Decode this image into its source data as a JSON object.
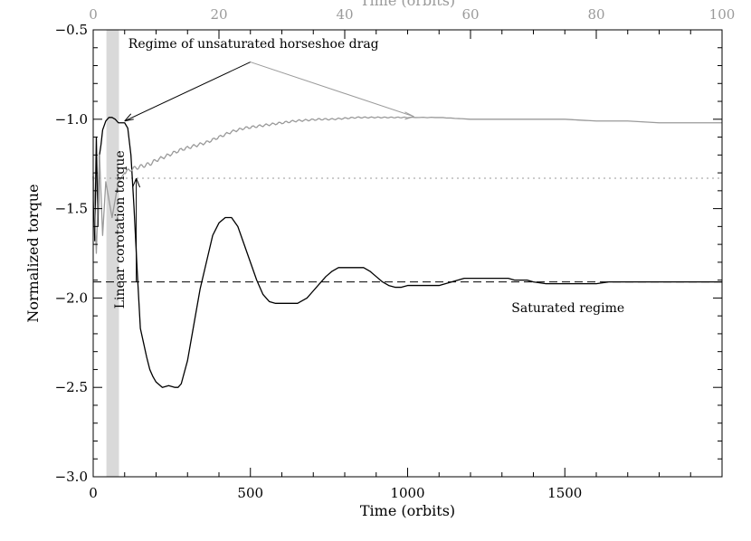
{
  "chart_data": {
    "type": "line",
    "title": "",
    "xlabel": "Time (orbits)",
    "ylabel": "Normalized torque",
    "top_xlabel": "Time (orbits)",
    "xlim": [
      0,
      2000
    ],
    "ylim": [
      -3.0,
      -0.5
    ],
    "top_xlim": [
      0,
      100
    ],
    "x_ticks": [
      0,
      500,
      1000,
      1500
    ],
    "x_tick_labels": [
      "0",
      "500",
      "1000",
      "1500"
    ],
    "top_x_ticks": [
      0,
      20,
      40,
      60,
      80,
      100
    ],
    "top_x_tick_labels": [
      "0",
      "20",
      "40",
      "60",
      "80",
      "100"
    ],
    "y_ticks": [
      -3.0,
      -2.5,
      -2.0,
      -1.5,
      -1.0,
      -0.5
    ],
    "y_tick_labels": [
      "−3.0",
      "−2.5",
      "−2.0",
      "−1.5",
      "−1.0",
      "−0.5"
    ],
    "grid": false,
    "shaded_band": {
      "x_range": [
        42,
        82
      ],
      "color": "#d9d9d9"
    },
    "reference_lines": [
      {
        "y": -1.91,
        "style": "dashed",
        "color": "#000000"
      },
      {
        "y": -1.33,
        "style": "dotted",
        "color": "#9a9a9a"
      }
    ],
    "series": [
      {
        "axis": "bottom",
        "color": "#000000",
        "x": [
          0,
          5,
          10,
          15,
          20,
          25,
          30,
          40,
          50,
          60,
          70,
          80,
          90,
          100,
          110,
          120,
          130,
          140,
          150,
          160,
          170,
          180,
          190,
          200,
          220,
          240,
          260,
          270,
          280,
          300,
          320,
          340,
          360,
          380,
          400,
          420,
          440,
          460,
          480,
          500,
          520,
          540,
          560,
          580,
          600,
          620,
          640,
          650,
          660,
          680,
          700,
          720,
          740,
          760,
          780,
          800,
          820,
          840,
          860,
          880,
          900,
          920,
          940,
          960,
          980,
          1000,
          1020,
          1040,
          1060,
          1080,
          1100,
          1120,
          1140,
          1160,
          1180,
          1200,
          1220,
          1240,
          1260,
          1280,
          1300,
          1320,
          1340,
          1360,
          1380,
          1400,
          1440,
          1480,
          1520,
          1560,
          1600,
          1640,
          1680,
          1720,
          1760,
          1800,
          1840,
          1880,
          1920,
          1960,
          2000
        ],
        "y": [
          -1.32,
          -1.68,
          -1.1,
          -1.6,
          -1.2,
          -1.14,
          -1.06,
          -1.01,
          -0.99,
          -0.99,
          -1.0,
          -1.02,
          -1.02,
          -1.02,
          -1.05,
          -1.2,
          -1.5,
          -1.85,
          -2.17,
          -2.25,
          -2.33,
          -2.4,
          -2.44,
          -2.47,
          -2.5,
          -2.49,
          -2.5,
          -2.5,
          -2.48,
          -2.35,
          -2.15,
          -1.95,
          -1.8,
          -1.65,
          -1.58,
          -1.55,
          -1.55,
          -1.6,
          -1.7,
          -1.8,
          -1.9,
          -1.98,
          -2.02,
          -2.03,
          -2.03,
          -2.03,
          -2.03,
          -2.03,
          -2.02,
          -2.0,
          -1.96,
          -1.92,
          -1.88,
          -1.85,
          -1.83,
          -1.83,
          -1.83,
          -1.83,
          -1.83,
          -1.85,
          -1.88,
          -1.91,
          -1.93,
          -1.94,
          -1.94,
          -1.93,
          -1.93,
          -1.93,
          -1.93,
          -1.93,
          -1.93,
          -1.92,
          -1.91,
          -1.9,
          -1.89,
          -1.89,
          -1.89,
          -1.89,
          -1.89,
          -1.89,
          -1.89,
          -1.89,
          -1.9,
          -1.9,
          -1.9,
          -1.91,
          -1.92,
          -1.92,
          -1.92,
          -1.92,
          -1.92,
          -1.91,
          -1.91,
          -1.91,
          -1.91,
          -1.91,
          -1.91,
          -1.91,
          -1.91,
          -1.91,
          -1.91
        ]
      },
      {
        "axis": "top",
        "color": "#9a9a9a",
        "x": [
          0,
          0.5,
          1,
          1.5,
          2,
          3,
          4,
          5,
          6,
          7,
          8,
          9,
          10,
          12,
          14,
          16,
          18,
          20,
          22,
          24,
          26,
          28,
          30,
          32,
          34,
          36,
          38,
          40,
          42,
          44,
          46,
          48,
          50,
          55,
          60,
          65,
          70,
          75,
          80,
          85,
          90,
          95,
          100
        ],
        "y": [
          -1.3,
          -1.75,
          -1.2,
          -1.65,
          -1.35,
          -1.55,
          -1.35,
          -1.3,
          -1.28,
          -1.27,
          -1.26,
          -1.25,
          -1.23,
          -1.2,
          -1.17,
          -1.15,
          -1.13,
          -1.1,
          -1.07,
          -1.05,
          -1.04,
          -1.03,
          -1.02,
          -1.01,
          -1.005,
          -1.0,
          -1.0,
          -0.995,
          -0.99,
          -0.99,
          -0.99,
          -0.99,
          -0.99,
          -0.99,
          -1.0,
          -1.0,
          -1.0,
          -1.0,
          -1.01,
          -1.01,
          -1.02,
          -1.02,
          -1.02
        ]
      }
    ],
    "annotations": {
      "regime_horseshoe": "Regime of unsaturated horseshoe drag",
      "linear_corotation": "Linear corotation torque",
      "saturated": "Saturated regime"
    }
  }
}
